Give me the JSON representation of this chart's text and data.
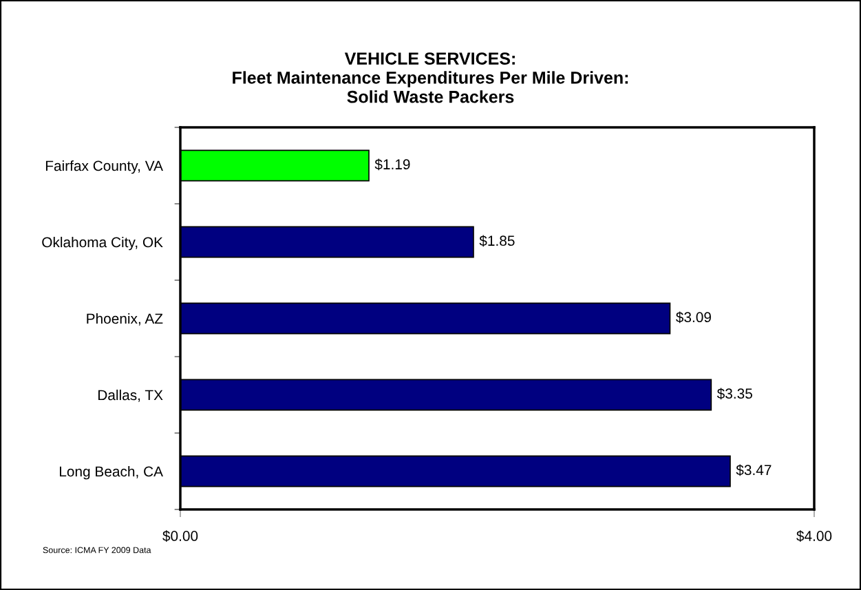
{
  "chart_data": {
    "type": "bar",
    "orientation": "horizontal",
    "title": "VEHICLE SERVICES:\nFleet Maintenance Expenditures Per Mile Driven:\nSolid Waste Packers",
    "categories": [
      "Fairfax County, VA",
      "Oklahoma City, OK",
      "Phoenix, AZ",
      "Dallas, TX",
      "Long Beach, CA"
    ],
    "values": [
      1.19,
      1.85,
      3.09,
      3.35,
      3.47
    ],
    "colors": [
      "#00ff00",
      "#000080",
      "#000080",
      "#000080",
      "#000080"
    ],
    "value_labels": [
      "$1.19",
      "$1.85",
      "$3.09",
      "$3.35",
      "$3.47"
    ],
    "xlim": [
      0,
      4
    ],
    "xticks": [
      {
        "value": 0,
        "label": "$0.00"
      },
      {
        "value": 4,
        "label": "$4.00"
      }
    ],
    "grid": false,
    "legend": false,
    "annotations": [
      "Source: ICMA FY 2009 Data"
    ]
  }
}
